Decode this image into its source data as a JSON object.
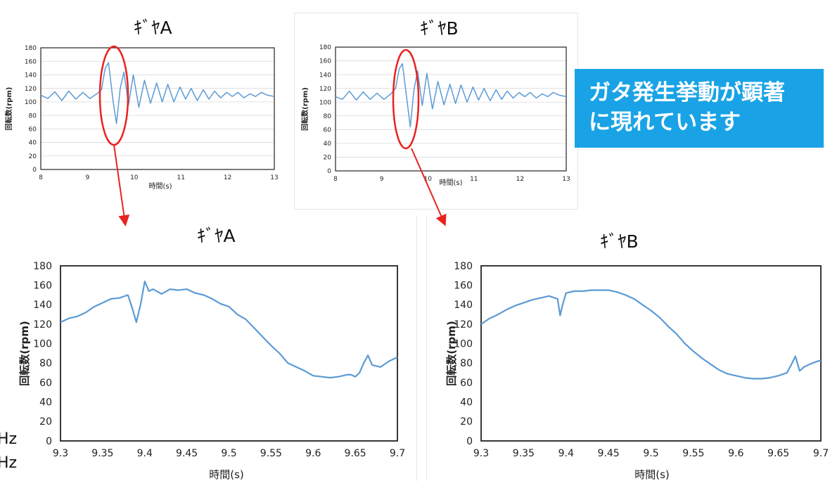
{
  "callout": {
    "line1": "ガタ発生挙動が顕著",
    "line2": "に現れています"
  },
  "cut_labels": [
    "Hz",
    "Hz"
  ],
  "colors": {
    "series": "#5b9bd5",
    "highlight": "#e8231f",
    "callout_bg": "#19a3e6"
  },
  "chart_data": [
    {
      "type": "line",
      "title": "ｷﾞﾔA",
      "xlabel": "時間(s)",
      "ylabel": "回転数(rpm)",
      "xlim": [
        8,
        13
      ],
      "ylim": [
        0,
        180
      ],
      "xticks": [
        8,
        9,
        10,
        11,
        12,
        13
      ],
      "yticks": [
        0,
        20,
        40,
        60,
        80,
        100,
        120,
        140,
        160,
        180
      ],
      "grid": true,
      "x": [
        8.0,
        8.15,
        8.3,
        8.45,
        8.6,
        8.75,
        8.9,
        9.05,
        9.2,
        9.3,
        9.38,
        9.45,
        9.55,
        9.62,
        9.7,
        9.78,
        9.88,
        9.98,
        10.1,
        10.22,
        10.35,
        10.48,
        10.6,
        10.72,
        10.85,
        10.98,
        11.1,
        11.22,
        11.35,
        11.48,
        11.6,
        11.72,
        11.85,
        11.98,
        12.1,
        12.22,
        12.35,
        12.48,
        12.6,
        12.72,
        12.85,
        13.0
      ],
      "y": [
        110,
        105,
        115,
        102,
        116,
        104,
        114,
        105,
        112,
        118,
        150,
        158,
        100,
        68,
        120,
        144,
        96,
        140,
        92,
        132,
        98,
        128,
        100,
        126,
        100,
        122,
        104,
        120,
        102,
        118,
        104,
        116,
        106,
        114,
        108,
        114,
        106,
        112,
        108,
        114,
        110,
        108
      ]
    },
    {
      "type": "line",
      "title": "ｷﾞﾔB",
      "xlabel": "時間(s)",
      "ylabel": "回転数(rpm)",
      "xlim": [
        8,
        13
      ],
      "ylim": [
        0,
        180
      ],
      "xticks": [
        8,
        9,
        10,
        11,
        12,
        13
      ],
      "yticks": [
        0,
        20,
        40,
        60,
        80,
        100,
        120,
        140,
        160,
        180
      ],
      "grid": true,
      "x": [
        8.0,
        8.15,
        8.3,
        8.45,
        8.6,
        8.75,
        8.9,
        9.05,
        9.2,
        9.3,
        9.38,
        9.45,
        9.55,
        9.62,
        9.7,
        9.78,
        9.88,
        9.98,
        10.1,
        10.22,
        10.35,
        10.48,
        10.6,
        10.72,
        10.85,
        10.98,
        11.1,
        11.22,
        11.35,
        11.48,
        11.6,
        11.72,
        11.85,
        11.98,
        12.1,
        12.22,
        12.35,
        12.48,
        12.6,
        12.72,
        12.85,
        13.0
      ],
      "y": [
        108,
        104,
        116,
        103,
        115,
        104,
        113,
        104,
        112,
        120,
        148,
        156,
        102,
        64,
        118,
        145,
        95,
        142,
        90,
        130,
        96,
        126,
        98,
        125,
        100,
        122,
        103,
        120,
        102,
        118,
        104,
        116,
        106,
        114,
        108,
        114,
        106,
        112,
        108,
        114,
        110,
        108
      ]
    },
    {
      "type": "line",
      "title": "ｷﾞﾔA",
      "xlabel": "時間(s)",
      "ylabel": "回転数(rpm)",
      "xlim": [
        9.3,
        9.7
      ],
      "ylim": [
        0,
        180
      ],
      "xticks": [
        9.3,
        9.35,
        9.4,
        9.45,
        9.5,
        9.55,
        9.6,
        9.65,
        9.7
      ],
      "yticks": [
        0,
        20,
        40,
        60,
        80,
        100,
        120,
        140,
        160,
        180
      ],
      "grid": false,
      "x": [
        9.3,
        9.31,
        9.32,
        9.33,
        9.34,
        9.35,
        9.36,
        9.37,
        9.38,
        9.385,
        9.39,
        9.395,
        9.4,
        9.405,
        9.41,
        9.42,
        9.43,
        9.44,
        9.45,
        9.46,
        9.47,
        9.48,
        9.49,
        9.5,
        9.51,
        9.52,
        9.53,
        9.54,
        9.55,
        9.56,
        9.57,
        9.58,
        9.59,
        9.6,
        9.61,
        9.62,
        9.63,
        9.64,
        9.645,
        9.65,
        9.655,
        9.66,
        9.665,
        9.67,
        9.68,
        9.69,
        9.7
      ],
      "y": [
        122,
        126,
        128,
        132,
        138,
        142,
        146,
        147,
        150,
        137,
        122,
        140,
        164,
        154,
        156,
        151,
        156,
        155,
        156,
        152,
        150,
        146,
        141,
        138,
        130,
        125,
        116,
        107,
        98,
        90,
        80,
        76,
        72,
        67,
        66,
        65,
        66,
        68,
        68,
        66,
        70,
        80,
        88,
        78,
        76,
        82,
        86
      ]
    },
    {
      "type": "line",
      "title": "ｷﾞﾔB",
      "xlabel": "時間(s)",
      "ylabel": "回転数(rpm)",
      "xlim": [
        9.3,
        9.7
      ],
      "ylim": [
        0,
        180
      ],
      "xticks": [
        9.3,
        9.35,
        9.4,
        9.45,
        9.5,
        9.55,
        9.6,
        9.65,
        9.7
      ],
      "yticks": [
        0,
        20,
        40,
        60,
        80,
        100,
        120,
        140,
        160,
        180
      ],
      "grid": false,
      "x": [
        9.3,
        9.31,
        9.32,
        9.33,
        9.34,
        9.35,
        9.36,
        9.37,
        9.38,
        9.39,
        9.393,
        9.396,
        9.4,
        9.41,
        9.42,
        9.43,
        9.44,
        9.45,
        9.46,
        9.47,
        9.48,
        9.49,
        9.5,
        9.51,
        9.52,
        9.53,
        9.54,
        9.55,
        9.56,
        9.57,
        9.58,
        9.59,
        9.6,
        9.61,
        9.62,
        9.63,
        9.64,
        9.65,
        9.66,
        9.665,
        9.67,
        9.675,
        9.68,
        9.69,
        9.7
      ],
      "y": [
        120,
        126,
        130,
        135,
        139,
        142,
        145,
        147,
        149,
        146,
        129,
        140,
        152,
        154,
        154,
        155,
        155,
        155,
        153,
        150,
        146,
        140,
        134,
        127,
        118,
        110,
        100,
        92,
        85,
        79,
        73,
        69,
        67,
        65,
        64,
        64,
        65,
        67,
        70,
        78,
        87,
        72,
        76,
        80,
        83
      ]
    }
  ]
}
